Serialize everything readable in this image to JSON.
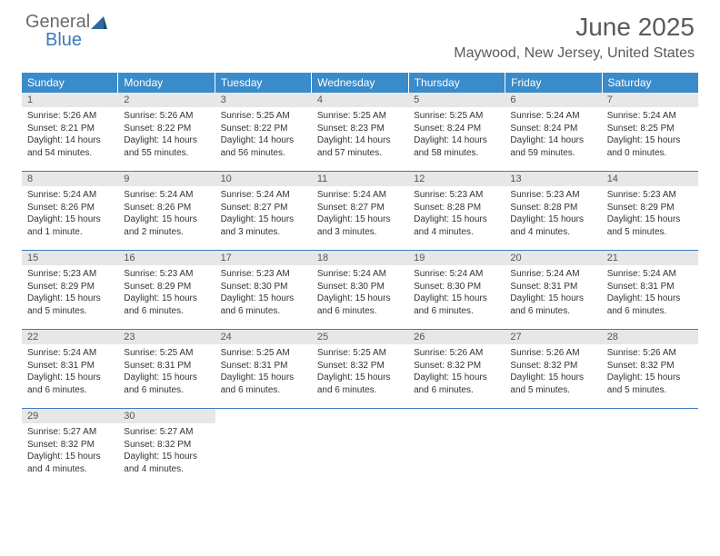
{
  "brand": {
    "line1": "General",
    "line2": "Blue"
  },
  "title": "June 2025",
  "location": "Maywood, New Jersey, United States",
  "colors": {
    "header_bg": "#3a8bc9",
    "rule": "#3a7bbf",
    "daynum_bg": "#e7e7e7",
    "text": "#333333",
    "brand_gray": "#6b6b6b",
    "brand_blue": "#3a7bbf"
  },
  "dow": [
    "Sunday",
    "Monday",
    "Tuesday",
    "Wednesday",
    "Thursday",
    "Friday",
    "Saturday"
  ],
  "weeks": [
    [
      {
        "n": "1",
        "sr": "Sunrise: 5:26 AM",
        "ss": "Sunset: 8:21 PM",
        "dl": "Daylight: 14 hours and 54 minutes."
      },
      {
        "n": "2",
        "sr": "Sunrise: 5:26 AM",
        "ss": "Sunset: 8:22 PM",
        "dl": "Daylight: 14 hours and 55 minutes."
      },
      {
        "n": "3",
        "sr": "Sunrise: 5:25 AM",
        "ss": "Sunset: 8:22 PM",
        "dl": "Daylight: 14 hours and 56 minutes."
      },
      {
        "n": "4",
        "sr": "Sunrise: 5:25 AM",
        "ss": "Sunset: 8:23 PM",
        "dl": "Daylight: 14 hours and 57 minutes."
      },
      {
        "n": "5",
        "sr": "Sunrise: 5:25 AM",
        "ss": "Sunset: 8:24 PM",
        "dl": "Daylight: 14 hours and 58 minutes."
      },
      {
        "n": "6",
        "sr": "Sunrise: 5:24 AM",
        "ss": "Sunset: 8:24 PM",
        "dl": "Daylight: 14 hours and 59 minutes."
      },
      {
        "n": "7",
        "sr": "Sunrise: 5:24 AM",
        "ss": "Sunset: 8:25 PM",
        "dl": "Daylight: 15 hours and 0 minutes."
      }
    ],
    [
      {
        "n": "8",
        "sr": "Sunrise: 5:24 AM",
        "ss": "Sunset: 8:26 PM",
        "dl": "Daylight: 15 hours and 1 minute."
      },
      {
        "n": "9",
        "sr": "Sunrise: 5:24 AM",
        "ss": "Sunset: 8:26 PM",
        "dl": "Daylight: 15 hours and 2 minutes."
      },
      {
        "n": "10",
        "sr": "Sunrise: 5:24 AM",
        "ss": "Sunset: 8:27 PM",
        "dl": "Daylight: 15 hours and 3 minutes."
      },
      {
        "n": "11",
        "sr": "Sunrise: 5:24 AM",
        "ss": "Sunset: 8:27 PM",
        "dl": "Daylight: 15 hours and 3 minutes."
      },
      {
        "n": "12",
        "sr": "Sunrise: 5:23 AM",
        "ss": "Sunset: 8:28 PM",
        "dl": "Daylight: 15 hours and 4 minutes."
      },
      {
        "n": "13",
        "sr": "Sunrise: 5:23 AM",
        "ss": "Sunset: 8:28 PM",
        "dl": "Daylight: 15 hours and 4 minutes."
      },
      {
        "n": "14",
        "sr": "Sunrise: 5:23 AM",
        "ss": "Sunset: 8:29 PM",
        "dl": "Daylight: 15 hours and 5 minutes."
      }
    ],
    [
      {
        "n": "15",
        "sr": "Sunrise: 5:23 AM",
        "ss": "Sunset: 8:29 PM",
        "dl": "Daylight: 15 hours and 5 minutes."
      },
      {
        "n": "16",
        "sr": "Sunrise: 5:23 AM",
        "ss": "Sunset: 8:29 PM",
        "dl": "Daylight: 15 hours and 6 minutes."
      },
      {
        "n": "17",
        "sr": "Sunrise: 5:23 AM",
        "ss": "Sunset: 8:30 PM",
        "dl": "Daylight: 15 hours and 6 minutes."
      },
      {
        "n": "18",
        "sr": "Sunrise: 5:24 AM",
        "ss": "Sunset: 8:30 PM",
        "dl": "Daylight: 15 hours and 6 minutes."
      },
      {
        "n": "19",
        "sr": "Sunrise: 5:24 AM",
        "ss": "Sunset: 8:30 PM",
        "dl": "Daylight: 15 hours and 6 minutes."
      },
      {
        "n": "20",
        "sr": "Sunrise: 5:24 AM",
        "ss": "Sunset: 8:31 PM",
        "dl": "Daylight: 15 hours and 6 minutes."
      },
      {
        "n": "21",
        "sr": "Sunrise: 5:24 AM",
        "ss": "Sunset: 8:31 PM",
        "dl": "Daylight: 15 hours and 6 minutes."
      }
    ],
    [
      {
        "n": "22",
        "sr": "Sunrise: 5:24 AM",
        "ss": "Sunset: 8:31 PM",
        "dl": "Daylight: 15 hours and 6 minutes."
      },
      {
        "n": "23",
        "sr": "Sunrise: 5:25 AM",
        "ss": "Sunset: 8:31 PM",
        "dl": "Daylight: 15 hours and 6 minutes."
      },
      {
        "n": "24",
        "sr": "Sunrise: 5:25 AM",
        "ss": "Sunset: 8:31 PM",
        "dl": "Daylight: 15 hours and 6 minutes."
      },
      {
        "n": "25",
        "sr": "Sunrise: 5:25 AM",
        "ss": "Sunset: 8:32 PM",
        "dl": "Daylight: 15 hours and 6 minutes."
      },
      {
        "n": "26",
        "sr": "Sunrise: 5:26 AM",
        "ss": "Sunset: 8:32 PM",
        "dl": "Daylight: 15 hours and 6 minutes."
      },
      {
        "n": "27",
        "sr": "Sunrise: 5:26 AM",
        "ss": "Sunset: 8:32 PM",
        "dl": "Daylight: 15 hours and 5 minutes."
      },
      {
        "n": "28",
        "sr": "Sunrise: 5:26 AM",
        "ss": "Sunset: 8:32 PM",
        "dl": "Daylight: 15 hours and 5 minutes."
      }
    ],
    [
      {
        "n": "29",
        "sr": "Sunrise: 5:27 AM",
        "ss": "Sunset: 8:32 PM",
        "dl": "Daylight: 15 hours and 4 minutes."
      },
      {
        "n": "30",
        "sr": "Sunrise: 5:27 AM",
        "ss": "Sunset: 8:32 PM",
        "dl": "Daylight: 15 hours and 4 minutes."
      },
      null,
      null,
      null,
      null,
      null
    ]
  ]
}
